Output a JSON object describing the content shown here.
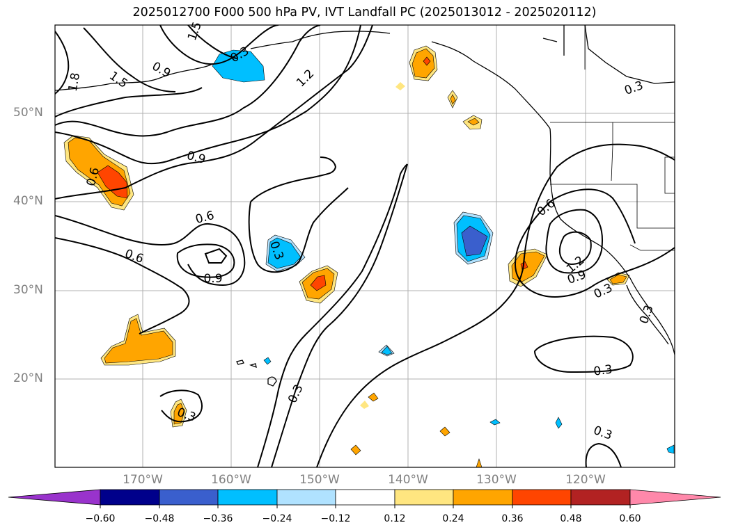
{
  "title": "2025012700 F000 500 hPa PV, IVT Landfall PC (2025013012 - 2025020112)",
  "map": {
    "lat_labels": [
      "50°N",
      "40°N",
      "30°N",
      "20°N"
    ],
    "lon_labels": [
      "170°W",
      "160°W",
      "150°W",
      "140°W",
      "130°W",
      "120°W"
    ],
    "contour_labels": [
      "1.8",
      "1.5",
      "0.9",
      "1.5",
      "1.2",
      "0.3",
      "0.9",
      "0.6",
      "0.6",
      "0.6",
      "0.9",
      "0.3",
      "0.3",
      "0.6",
      "0.9",
      "1.2",
      "0.3",
      "0.3",
      "0.3",
      "0.3",
      "0.3",
      "0.3"
    ]
  },
  "colorbar": {
    "ticks": [
      "−0.60",
      "−0.48",
      "−0.36",
      "−0.24",
      "−0.12",
      "0.12",
      "0.24",
      "0.36",
      "0.48",
      "0.60"
    ],
    "colors": [
      "#9933cc",
      "#00008b",
      "#3a5fcd",
      "#00bfff",
      "#b0e2ff",
      "#ffffff",
      "#ffe680",
      "#ffa500",
      "#ff4500",
      "#b22222",
      "#ff88aa"
    ]
  }
}
